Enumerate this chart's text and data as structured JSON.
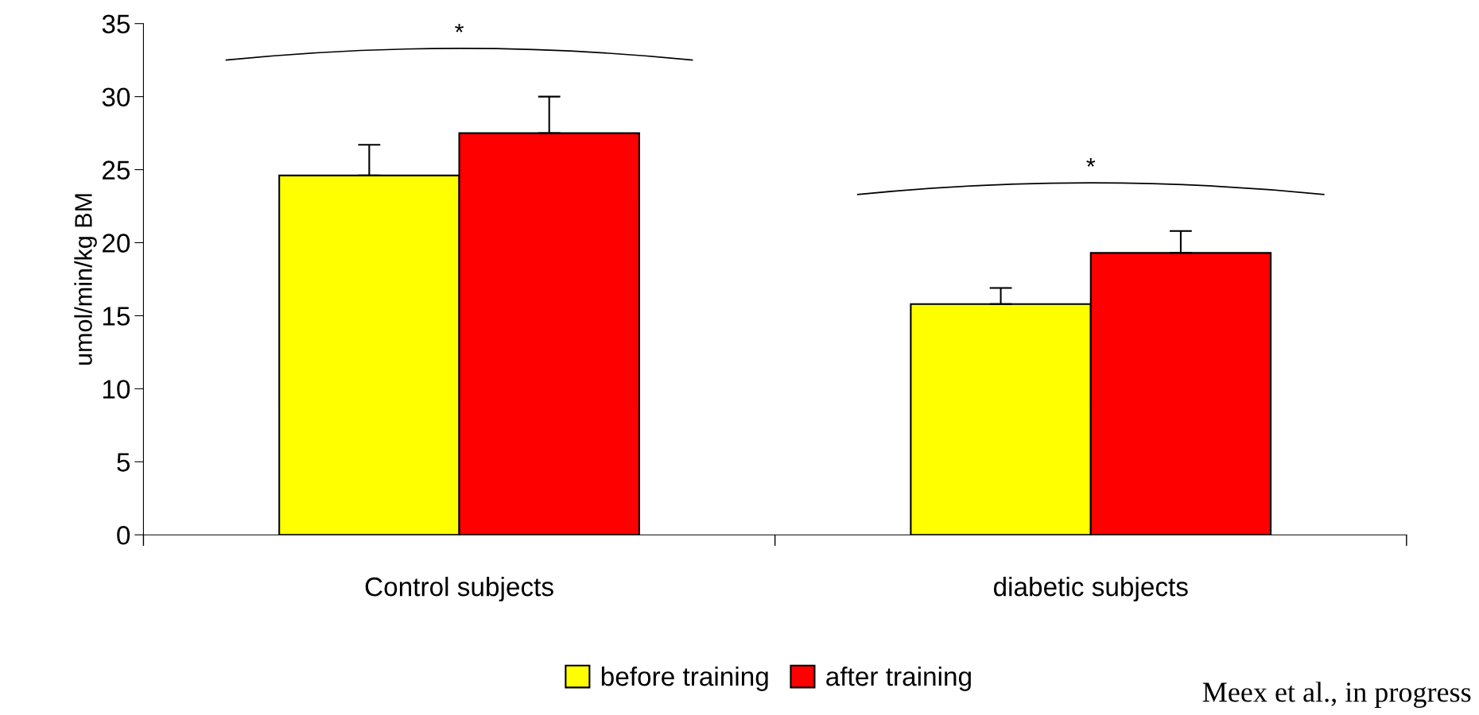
{
  "chart_data": {
    "type": "bar",
    "ylabel": "umol/min/kg BM",
    "categories": [
      "Control subjects",
      "diabetic subjects"
    ],
    "series": [
      {
        "name": "before training",
        "color": "#ffff00",
        "values": [
          24.6,
          15.8
        ],
        "errors": [
          [
            24.6,
            26.7
          ],
          [
            15.8,
            16.9
          ]
        ]
      },
      {
        "name": "after training",
        "color": "#ff0000",
        "values": [
          27.5,
          19.3
        ],
        "errors": [
          [
            27.5,
            30.0
          ],
          [
            19.3,
            20.8
          ]
        ]
      }
    ],
    "ylim": [
      0,
      35
    ],
    "yticks": [
      0,
      5,
      10,
      15,
      20,
      25,
      30,
      35
    ],
    "grid": false,
    "legend": "bottom",
    "annotations": [
      "*",
      "*",
      "Meex et al., in progress"
    ]
  }
}
